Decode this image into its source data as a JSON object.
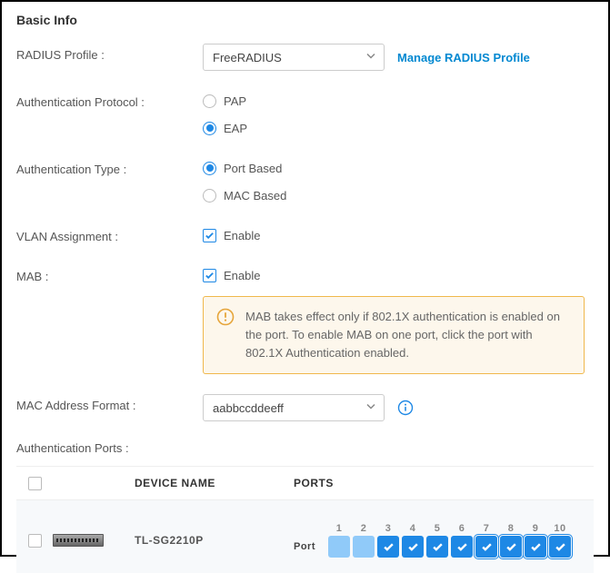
{
  "section_title": "Basic Info",
  "radius_profile": {
    "label": "RADIUS Profile :",
    "value": "FreeRADIUS",
    "manage_link": "Manage RADIUS Profile"
  },
  "auth_protocol": {
    "label": "Authentication Protocol :",
    "options": [
      "PAP",
      "EAP"
    ],
    "selected": "EAP"
  },
  "auth_type": {
    "label": "Authentication Type :",
    "options": [
      "Port Based",
      "MAC Based"
    ],
    "selected": "Port Based"
  },
  "vlan_assignment": {
    "label": "VLAN Assignment :",
    "option_label": "Enable",
    "checked": true
  },
  "mab": {
    "label": "MAB :",
    "option_label": "Enable",
    "checked": true
  },
  "mab_notice": "MAB takes effect only if 802.1X authentication is enabled on the port. To enable MAB on one port, click the port with 802.1X Authentication enabled.",
  "mac_format": {
    "label": "MAC Address Format :",
    "value": "aabbccddeeff"
  },
  "auth_ports": {
    "label": "Authentication Ports :",
    "columns": {
      "device_name": "DEVICE NAME",
      "ports": "PORTS"
    },
    "row": {
      "device_name": "TL-SG2210P",
      "port_row_label": "Port",
      "port_numbers": [
        "1",
        "2",
        "3",
        "4",
        "5",
        "6",
        "7",
        "8",
        "9",
        "10"
      ],
      "port_states": [
        "light",
        "light",
        "solid",
        "solid",
        "solid",
        "solid",
        "outlined",
        "outlined",
        "outlined",
        "outlined"
      ]
    }
  },
  "colors": {
    "accent": "#1e88e5",
    "link": "#0288d1",
    "warn_border": "#f0b84c",
    "warn_bg": "#fdf7ec",
    "port_light": "#90caf9",
    "port_solid": "#1e88e5"
  }
}
